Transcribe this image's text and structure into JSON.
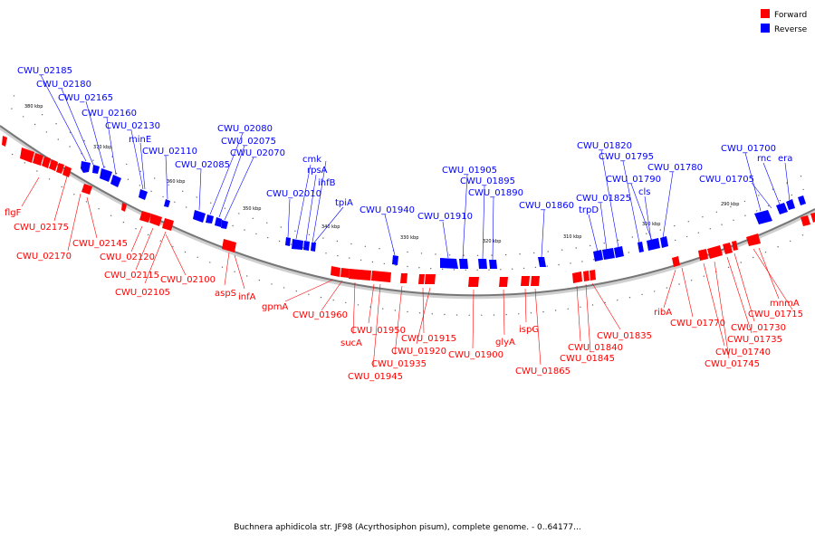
{
  "caption": "Buchnera aphidicola str. JF98 (Acyrthosiphon pisum), complete genome. - 0..64177...",
  "legend": [
    {
      "label": "Forward",
      "color": "#ff0000"
    },
    {
      "label": "Reverse",
      "color": "#0000ff"
    }
  ],
  "colors": {
    "forward": "#ff0000",
    "reverse": "#0000ff",
    "backbone": "#777777"
  },
  "ticks": [
    "380 kbp",
    "370 kbp",
    "360 kbp",
    "350 kbp",
    "340 kbp",
    "330 kbp",
    "320 kbp",
    "310 kbp",
    "300 kbp",
    "290 kbp"
  ],
  "reverse_genes": [
    "CWU_02185",
    "CWU_02180",
    "CWU_02165",
    "CWU_02160",
    "CWU_02130",
    "minE",
    "CWU_02110",
    "CWU_02085",
    "CWU_02080",
    "CWU_02075",
    "CWU_02070",
    "CWU_02010",
    "cmk",
    "rpsA",
    "ihfB",
    "tpiA",
    "CWU_01940",
    "CWU_01910",
    "CWU_01905",
    "CWU_01895",
    "CWU_01890",
    "CWU_01860",
    "CWU_01820",
    "trpD",
    "CWU_01825",
    "CWU_01795",
    "CWU_01790",
    "cls",
    "CWU_01780",
    "CWU_01700",
    "rnc",
    "era",
    "CWU_01705"
  ],
  "forward_genes": [
    "flgF",
    "CWU_02175",
    "CWU_02170",
    "CWU_02145",
    "CWU_02120",
    "CWU_02115",
    "CWU_02105",
    "CWU_02100",
    "aspS",
    "infA",
    "gpmA",
    "CWU_01960",
    "sucA",
    "CWU_01950",
    "CWU_01935",
    "CWU_01945",
    "CWU_01915",
    "CWU_01920",
    "CWU_01900",
    "glyA",
    "ispG",
    "CWU_01865",
    "CWU_01840",
    "CWU_01845",
    "CWU_01835",
    "ribA",
    "CWU_01770",
    "CWU_01740",
    "CWU_01745",
    "CWU_01735",
    "CWU_01730",
    "mnmA",
    "CWU_01715"
  ]
}
